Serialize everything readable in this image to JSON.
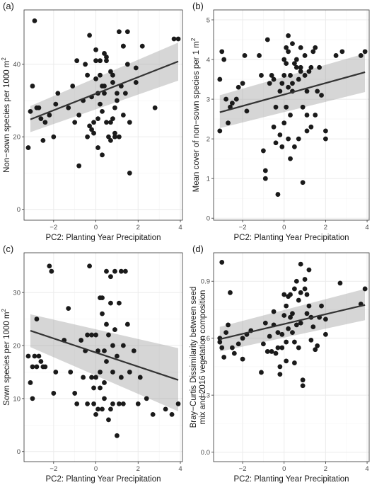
{
  "chart_data": [
    {
      "type": "scatter",
      "tag": "(a)",
      "xlabel": "PC2: Planting Year Precipitation",
      "ylabel": "Non−sown species per 1000  m",
      "ylabel_sup": "2",
      "xlim": [
        -3.4,
        4.1
      ],
      "ylim": [
        -3,
        55
      ],
      "xticks": [
        -2,
        0,
        2,
        4
      ],
      "yticks": [
        0,
        20,
        40
      ],
      "fit": {
        "x": [
          -3.1,
          3.9
        ],
        "y": [
          24.8,
          40.8
        ],
        "lower": [
          21.3,
          35.5
        ],
        "upper": [
          28.5,
          46.0
        ]
      },
      "points": [
        [
          -3.2,
          17
        ],
        [
          -3.1,
          27
        ],
        [
          -3.0,
          34
        ],
        [
          -2.9,
          52
        ],
        [
          -2.8,
          28
        ],
        [
          -2.7,
          28
        ],
        [
          -2.6,
          25
        ],
        [
          -2.5,
          19
        ],
        [
          -2.4,
          24
        ],
        [
          -2.2,
          26
        ],
        [
          -2.0,
          20
        ],
        [
          -1.9,
          29
        ],
        [
          -1.8,
          32
        ],
        [
          -1.3,
          28
        ],
        [
          -1.1,
          34
        ],
        [
          -1.0,
          24
        ],
        [
          -0.9,
          41
        ],
        [
          -0.8,
          26
        ],
        [
          -0.8,
          12
        ],
        [
          -0.6,
          30
        ],
        [
          -0.5,
          40
        ],
        [
          -0.4,
          37
        ],
        [
          -0.4,
          20
        ],
        [
          -0.3,
          48
        ],
        [
          -0.3,
          23
        ],
        [
          -0.2,
          22
        ],
        [
          -0.2,
          31
        ],
        [
          -0.1,
          24
        ],
        [
          -0.1,
          21
        ],
        [
          0.0,
          36
        ],
        [
          0.0,
          41
        ],
        [
          0.0,
          44
        ],
        [
          0.1,
          32
        ],
        [
          0.1,
          17
        ],
        [
          0.1,
          25
        ],
        [
          0.2,
          41
        ],
        [
          0.2,
          37
        ],
        [
          0.2,
          29
        ],
        [
          0.3,
          34
        ],
        [
          0.3,
          27
        ],
        [
          0.3,
          15
        ],
        [
          0.4,
          43
        ],
        [
          0.4,
          34
        ],
        [
          0.4,
          32
        ],
        [
          0.5,
          42
        ],
        [
          0.5,
          41
        ],
        [
          0.5,
          24
        ],
        [
          0.6,
          20
        ],
        [
          0.7,
          24
        ],
        [
          0.7,
          19
        ],
        [
          0.7,
          38
        ],
        [
          0.8,
          25
        ],
        [
          0.8,
          37
        ],
        [
          0.8,
          35
        ],
        [
          0.9,
          28
        ],
        [
          0.9,
          21
        ],
        [
          0.9,
          20
        ],
        [
          1.0,
          30
        ],
        [
          1.0,
          32
        ],
        [
          1.1,
          49
        ],
        [
          1.1,
          20
        ],
        [
          1.2,
          34
        ],
        [
          1.3,
          45
        ],
        [
          1.3,
          26
        ],
        [
          1.3,
          45
        ],
        [
          1.4,
          32
        ],
        [
          1.5,
          49
        ],
        [
          1.5,
          40
        ],
        [
          1.6,
          24
        ],
        [
          1.6,
          10
        ],
        [
          1.9,
          39
        ],
        [
          1.9,
          35
        ],
        [
          2.2,
          45
        ],
        [
          2.8,
          28
        ],
        [
          3.7,
          47
        ],
        [
          3.9,
          47
        ]
      ]
    },
    {
      "type": "scatter",
      "tag": "(b)",
      "xlabel": "PC2: Planting Year Precipitation",
      "ylabel": "Mean cover of non−sown species per 1  m",
      "ylabel_sup": "2",
      "xlim": [
        -3.4,
        4.1
      ],
      "ylim": [
        -0.05,
        5.25
      ],
      "xticks": [
        -2,
        0,
        2,
        4
      ],
      "yticks": [
        0,
        1,
        2,
        3,
        4,
        5
      ],
      "fit": {
        "x": [
          -3.1,
          3.9
        ],
        "y": [
          2.67,
          3.68
        ],
        "lower": [
          2.27,
          3.18
        ],
        "upper": [
          3.1,
          4.15
        ]
      },
      "points": [
        [
          -3.1,
          2.2
        ],
        [
          -3.1,
          3.5
        ],
        [
          -3.0,
          4.2
        ],
        [
          -2.9,
          4.0
        ],
        [
          -2.8,
          3.0
        ],
        [
          -2.7,
          2.4
        ],
        [
          -2.6,
          2.8
        ],
        [
          -2.5,
          2.9
        ],
        [
          -2.3,
          3.0
        ],
        [
          -2.2,
          3.3
        ],
        [
          -2.0,
          3.4
        ],
        [
          -1.9,
          4.1
        ],
        [
          -1.8,
          2.7
        ],
        [
          -1.2,
          4.1
        ],
        [
          -1.1,
          3.6
        ],
        [
          -1.0,
          1.7
        ],
        [
          -0.9,
          1.2
        ],
        [
          -0.9,
          1.0
        ],
        [
          -0.8,
          4.5
        ],
        [
          -0.7,
          3.4
        ],
        [
          -0.6,
          3.6
        ],
        [
          -0.5,
          3.5
        ],
        [
          -0.5,
          2.3
        ],
        [
          -0.4,
          1.9
        ],
        [
          -0.4,
          2.8
        ],
        [
          -0.3,
          0.6
        ],
        [
          -0.2,
          3.2
        ],
        [
          -0.2,
          2.1
        ],
        [
          -0.1,
          3.4
        ],
        [
          -0.1,
          1.8
        ],
        [
          0.0,
          4.0
        ],
        [
          0.0,
          3.6
        ],
        [
          0.0,
          2.4
        ],
        [
          0.1,
          4.3
        ],
        [
          0.1,
          3.9
        ],
        [
          0.1,
          2.8
        ],
        [
          0.2,
          4.2
        ],
        [
          0.2,
          4.6
        ],
        [
          0.2,
          3.3
        ],
        [
          0.2,
          2.0
        ],
        [
          0.3,
          3.6
        ],
        [
          0.3,
          2.6
        ],
        [
          0.3,
          1.5
        ],
        [
          0.4,
          4.4
        ],
        [
          0.4,
          3.4
        ],
        [
          0.4,
          3.2
        ],
        [
          0.5,
          3.9
        ],
        [
          0.5,
          1.8
        ],
        [
          0.6,
          4.0
        ],
        [
          0.6,
          3.8
        ],
        [
          0.7,
          3.5
        ],
        [
          0.7,
          2.0
        ],
        [
          0.8,
          4.3
        ],
        [
          0.8,
          3.8
        ],
        [
          0.8,
          3.7
        ],
        [
          0.9,
          0.9
        ],
        [
          0.9,
          2.8
        ],
        [
          1.0,
          3.6
        ],
        [
          1.0,
          4.1
        ],
        [
          1.1,
          2.2
        ],
        [
          1.1,
          3.2
        ],
        [
          1.1,
          2.6
        ],
        [
          1.2,
          3.7
        ],
        [
          1.3,
          3.8
        ],
        [
          1.3,
          2.3
        ],
        [
          1.4,
          4.2
        ],
        [
          1.5,
          4.3
        ],
        [
          1.5,
          2.6
        ],
        [
          1.6,
          3.2
        ],
        [
          1.7,
          3.8
        ],
        [
          1.8,
          3.1
        ],
        [
          2.0,
          2.2
        ],
        [
          2.0,
          2.0
        ],
        [
          2.5,
          4.1
        ],
        [
          2.8,
          4.2
        ],
        [
          3.7,
          4.1
        ],
        [
          3.9,
          4.2
        ]
      ]
    },
    {
      "type": "scatter",
      "tag": "(c)",
      "xlabel": "PC2: Planting Year Precipitation",
      "ylabel": "Sown species per 1000  m",
      "ylabel_sup": "2",
      "xlim": [
        -3.4,
        4.1
      ],
      "ylim": [
        -1.9,
        37.5
      ],
      "xticks": [
        -2,
        0,
        2,
        4
      ],
      "yticks": [
        0,
        10,
        20,
        30
      ],
      "fit": {
        "x": [
          -3.1,
          3.9
        ],
        "y": [
          22.8,
          13.5
        ],
        "lower": [
          19.7,
          7.6
        ],
        "upper": [
          25.9,
          19.5
        ]
      },
      "points": [
        [
          -3.2,
          18
        ],
        [
          -3.1,
          13
        ],
        [
          -3.0,
          16
        ],
        [
          -3.0,
          10
        ],
        [
          -2.9,
          18
        ],
        [
          -2.8,
          25
        ],
        [
          -2.8,
          16
        ],
        [
          -2.7,
          18
        ],
        [
          -2.6,
          17
        ],
        [
          -2.5,
          16
        ],
        [
          -2.4,
          16
        ],
        [
          -2.2,
          35
        ],
        [
          -2.1,
          34
        ],
        [
          -2.0,
          11
        ],
        [
          -1.9,
          15
        ],
        [
          -1.5,
          21
        ],
        [
          -1.3,
          27
        ],
        [
          -1.2,
          15
        ],
        [
          -1.0,
          11
        ],
        [
          -0.9,
          9
        ],
        [
          -0.7,
          21
        ],
        [
          -0.6,
          14
        ],
        [
          -0.5,
          19
        ],
        [
          -0.4,
          9
        ],
        [
          -0.4,
          22
        ],
        [
          -0.3,
          35
        ],
        [
          -0.2,
          22
        ],
        [
          -0.2,
          14
        ],
        [
          -0.1,
          12
        ],
        [
          -0.1,
          9
        ],
        [
          0.0,
          22
        ],
        [
          0.0,
          14
        ],
        [
          0.0,
          7
        ],
        [
          0.1,
          8
        ],
        [
          0.1,
          19
        ],
        [
          0.2,
          15
        ],
        [
          0.2,
          29
        ],
        [
          0.2,
          12
        ],
        [
          0.3,
          29
        ],
        [
          0.3,
          26
        ],
        [
          0.3,
          8
        ],
        [
          0.4,
          13
        ],
        [
          0.4,
          10
        ],
        [
          0.4,
          19
        ],
        [
          0.5,
          34
        ],
        [
          0.5,
          24
        ],
        [
          0.5,
          17
        ],
        [
          0.6,
          22
        ],
        [
          0.6,
          6
        ],
        [
          0.7,
          33
        ],
        [
          0.7,
          28
        ],
        [
          0.7,
          8
        ],
        [
          0.8,
          20
        ],
        [
          0.8,
          15
        ],
        [
          0.8,
          9
        ],
        [
          0.9,
          34
        ],
        [
          0.9,
          23
        ],
        [
          1.0,
          3
        ],
        [
          1.0,
          18
        ],
        [
          1.1,
          28
        ],
        [
          1.1,
          9
        ],
        [
          1.2,
          34
        ],
        [
          1.2,
          14
        ],
        [
          1.3,
          20
        ],
        [
          1.3,
          9
        ],
        [
          1.4,
          34
        ],
        [
          1.5,
          24
        ],
        [
          1.6,
          15
        ],
        [
          1.8,
          19
        ],
        [
          2.0,
          9
        ],
        [
          2.1,
          14
        ],
        [
          2.4,
          10
        ],
        [
          2.7,
          7
        ],
        [
          3.3,
          8
        ],
        [
          3.6,
          7
        ],
        [
          3.9,
          9
        ]
      ]
    },
    {
      "type": "scatter",
      "tag": "(d)",
      "xlabel": "PC2: Planting Year Precipitation",
      "ylabel": "Bray−Curtis Dissimilarity between seed",
      "ylabel2": "mix and 2016 vegetation composition",
      "xlim": [
        -3.4,
        4.1
      ],
      "ylim": [
        -0.05,
        1.05
      ],
      "xticks": [
        -2,
        0,
        2,
        4
      ],
      "yticks": [
        "0.0",
        "0.3",
        "0.6",
        "0.9"
      ],
      "fit": {
        "x": [
          -3.1,
          3.9
        ],
        "y": [
          0.595,
          0.775
        ],
        "lower": [
          0.53,
          0.695
        ],
        "upper": [
          0.66,
          0.86
        ]
      },
      "points": [
        [
          -3.1,
          0.58
        ],
        [
          -3.1,
          0.6
        ],
        [
          -3.0,
          0.55
        ],
        [
          -3.0,
          1.0
        ],
        [
          -2.9,
          0.5
        ],
        [
          -2.8,
          0.63
        ],
        [
          -2.7,
          0.67
        ],
        [
          -2.6,
          0.84
        ],
        [
          -2.5,
          0.55
        ],
        [
          -2.4,
          0.52
        ],
        [
          -2.2,
          0.57
        ],
        [
          -2.0,
          0.6
        ],
        [
          -2.0,
          0.49
        ],
        [
          -1.8,
          0.62
        ],
        [
          -1.6,
          0.64
        ],
        [
          -1.1,
          0.42
        ],
        [
          -1.0,
          0.57
        ],
        [
          -0.9,
          0.68
        ],
        [
          -0.8,
          0.53
        ],
        [
          -0.7,
          0.61
        ],
        [
          -0.6,
          0.53
        ],
        [
          -0.5,
          0.74
        ],
        [
          -0.5,
          0.67
        ],
        [
          -0.4,
          0.52
        ],
        [
          -0.3,
          0.63
        ],
        [
          -0.3,
          0.55
        ],
        [
          -0.2,
          0.45
        ],
        [
          -0.2,
          0.41
        ],
        [
          -0.1,
          0.55
        ],
        [
          -0.1,
          0.62
        ],
        [
          0.0,
          0.72
        ],
        [
          0.0,
          0.83
        ],
        [
          0.1,
          0.77
        ],
        [
          0.1,
          0.48
        ],
        [
          0.1,
          0.58
        ],
        [
          0.2,
          0.82
        ],
        [
          0.2,
          0.65
        ],
        [
          0.3,
          0.83
        ],
        [
          0.3,
          0.71
        ],
        [
          0.4,
          0.73
        ],
        [
          0.4,
          0.63
        ],
        [
          0.5,
          0.86
        ],
        [
          0.5,
          0.58
        ],
        [
          0.5,
          0.47
        ],
        [
          0.6,
          0.9
        ],
        [
          0.6,
          0.67
        ],
        [
          0.7,
          0.8
        ],
        [
          0.7,
          0.55
        ],
        [
          0.8,
          0.99
        ],
        [
          0.8,
          0.68
        ],
        [
          0.8,
          0.84
        ],
        [
          0.9,
          0.38
        ],
        [
          0.9,
          0.35
        ],
        [
          1.0,
          0.86
        ],
        [
          1.0,
          0.91
        ],
        [
          1.1,
          0.83
        ],
        [
          1.1,
          0.73
        ],
        [
          1.2,
          0.77
        ],
        [
          1.2,
          0.96
        ],
        [
          1.3,
          0.71
        ],
        [
          1.3,
          0.59
        ],
        [
          1.4,
          0.66
        ],
        [
          1.5,
          0.54
        ],
        [
          1.6,
          0.56
        ],
        [
          1.7,
          0.71
        ],
        [
          1.8,
          0.77
        ],
        [
          2.0,
          0.7
        ],
        [
          2.0,
          0.62
        ],
        [
          2.7,
          0.89
        ],
        [
          3.7,
          0.78
        ],
        [
          3.9,
          0.86
        ]
      ]
    }
  ]
}
